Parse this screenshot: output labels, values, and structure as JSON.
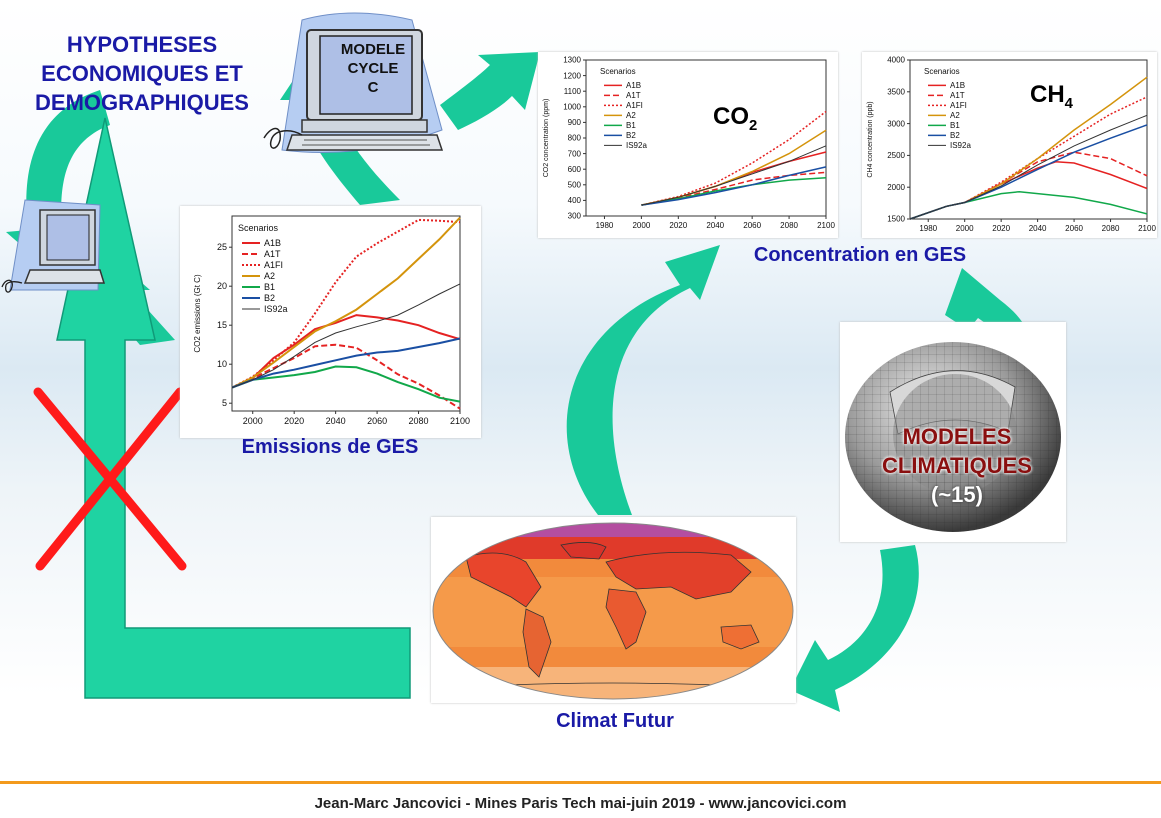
{
  "hypotheses": {
    "line1": "HYPOTHESES",
    "line2": "ECONOMIQUES ET",
    "line3": "DEMOGRAPHIQUES"
  },
  "computer": {
    "line1": "MODELE",
    "line2": "CYCLE",
    "line3": "C"
  },
  "labels": {
    "emissions": "Emissions de GES",
    "concentration": "Concentration en GES",
    "climat": "Climat Futur"
  },
  "modeles": {
    "line1": "MODELES",
    "line2": "CLIMATIQUES",
    "line3": "(~15)"
  },
  "footer": "Jean-Marc Jancovici - Mines Paris Tech mai-juin 2019 - www.jancovici.com",
  "colors": {
    "accent_blue": "#1a1aa6",
    "arrow_green": "#19c99a",
    "footer_line": "#f39a1c",
    "modeles_red": "#8a0f0f",
    "cross_red": "#ff1a1a"
  },
  "chart_data": [
    {
      "type": "line",
      "legend_title": "Scenarios",
      "ylabel": "CO2 emissions (Gt C)",
      "xlim": [
        1990,
        2100
      ],
      "ylim": [
        4,
        29
      ],
      "xticks": [
        "2000",
        "2020",
        "2040",
        "2060",
        "2080",
        "2100"
      ],
      "yticks": [
        "5",
        "10",
        "15",
        "20",
        "25"
      ],
      "legend_placement": "top-left",
      "series": [
        {
          "name": "A1B",
          "color": "#e52222",
          "style": "solid",
          "width": 2,
          "x": [
            1990,
            2000,
            2010,
            2020,
            2030,
            2040,
            2050,
            2060,
            2070,
            2080,
            2090,
            2100
          ],
          "y": [
            7,
            8.2,
            10.8,
            12.5,
            14.5,
            15.3,
            16.3,
            16,
            15.6,
            15,
            14,
            13.2
          ]
        },
        {
          "name": "A1T",
          "color": "#e52222",
          "style": "dashed",
          "width": 2,
          "x": [
            1990,
            2000,
            2010,
            2020,
            2030,
            2040,
            2050,
            2060,
            2070,
            2080,
            2090,
            2100
          ],
          "y": [
            7,
            8.2,
            9.5,
            10.8,
            12.3,
            12.5,
            12.1,
            10.5,
            8.7,
            7.5,
            6,
            4.3
          ]
        },
        {
          "name": "A1FI",
          "color": "#e52222",
          "style": "dotted",
          "width": 2,
          "x": [
            1990,
            2000,
            2010,
            2020,
            2030,
            2040,
            2050,
            2060,
            2070,
            2080,
            2090,
            2100
          ],
          "y": [
            7,
            8.4,
            10.5,
            12.8,
            16.5,
            20.5,
            23.8,
            25.5,
            27,
            28.5,
            28.4,
            28.2
          ]
        },
        {
          "name": "A2",
          "color": "#d4940c",
          "style": "solid",
          "width": 2,
          "x": [
            1990,
            2000,
            2010,
            2020,
            2030,
            2040,
            2050,
            2060,
            2070,
            2080,
            2090,
            2100
          ],
          "y": [
            7,
            8.3,
            10.2,
            12.2,
            14.2,
            15.5,
            17,
            19,
            21,
            23.5,
            26,
            28.8
          ]
        },
        {
          "name": "B1",
          "color": "#11a84a",
          "style": "solid",
          "width": 2,
          "x": [
            1990,
            2000,
            2010,
            2020,
            2030,
            2040,
            2050,
            2060,
            2070,
            2080,
            2090,
            2100
          ],
          "y": [
            7,
            8,
            8.3,
            8.6,
            9,
            9.7,
            9.6,
            8.8,
            7.7,
            6.8,
            5.7,
            5.2
          ]
        },
        {
          "name": "B2",
          "color": "#1a4fa3",
          "style": "solid",
          "width": 2,
          "x": [
            1990,
            2000,
            2010,
            2020,
            2030,
            2040,
            2050,
            2060,
            2070,
            2080,
            2090,
            2100
          ],
          "y": [
            7,
            8,
            8.8,
            9.3,
            9.9,
            10.5,
            11.1,
            11.5,
            11.7,
            12.2,
            12.7,
            13.3
          ]
        },
        {
          "name": "IS92a",
          "color": "#333333",
          "style": "solid",
          "width": 1,
          "x": [
            1990,
            2000,
            2010,
            2020,
            2030,
            2040,
            2050,
            2060,
            2070,
            2080,
            2090,
            2100
          ],
          "y": [
            7,
            8,
            9.3,
            11,
            12.8,
            14,
            14.8,
            15.5,
            16.3,
            17.6,
            19,
            20.3
          ]
        }
      ]
    },
    {
      "type": "line",
      "title": "CO2",
      "legend_title": "Scenarios",
      "ylabel": "CO2 concentration (ppm)",
      "xlim": [
        1970,
        2100
      ],
      "ylim": [
        300,
        1300
      ],
      "xticks": [
        "1980",
        "2000",
        "2020",
        "2040",
        "2060",
        "2080",
        "2100"
      ],
      "yticks": [
        "300",
        "400",
        "500",
        "600",
        "700",
        "800",
        "900",
        "1000",
        "1100",
        "1200",
        "1300"
      ],
      "legend_placement": "top-left",
      "series": [
        {
          "name": "A1B",
          "color": "#e52222",
          "style": "solid",
          "width": 1.5,
          "x": [
            2000,
            2020,
            2040,
            2060,
            2080,
            2100
          ],
          "y": [
            370,
            420,
            490,
            580,
            650,
            710
          ]
        },
        {
          "name": "A1T",
          "color": "#e52222",
          "style": "dashed",
          "width": 1.5,
          "x": [
            2000,
            2020,
            2040,
            2060,
            2080,
            2100
          ],
          "y": [
            370,
            415,
            470,
            530,
            560,
            580
          ]
        },
        {
          "name": "A1FI",
          "color": "#e52222",
          "style": "dotted",
          "width": 1.5,
          "x": [
            2000,
            2020,
            2040,
            2060,
            2080,
            2100
          ],
          "y": [
            370,
            425,
            510,
            640,
            790,
            970
          ]
        },
        {
          "name": "A2",
          "color": "#d4940c",
          "style": "solid",
          "width": 1.5,
          "x": [
            2000,
            2020,
            2040,
            2060,
            2080,
            2100
          ],
          "y": [
            370,
            420,
            490,
            585,
            700,
            850
          ]
        },
        {
          "name": "B1",
          "color": "#11a84a",
          "style": "solid",
          "width": 1.5,
          "x": [
            2000,
            2020,
            2040,
            2060,
            2080,
            2100
          ],
          "y": [
            370,
            410,
            460,
            500,
            530,
            545
          ]
        },
        {
          "name": "B2",
          "color": "#1a4fa3",
          "style": "solid",
          "width": 1.5,
          "x": [
            2000,
            2020,
            2040,
            2060,
            2080,
            2100
          ],
          "y": [
            370,
            405,
            450,
            500,
            560,
            615
          ]
        },
        {
          "name": "IS92a",
          "color": "#333333",
          "style": "solid",
          "width": 1,
          "x": [
            2000,
            2020,
            2040,
            2060,
            2080,
            2100
          ],
          "y": [
            370,
            420,
            490,
            570,
            650,
            750
          ]
        }
      ]
    },
    {
      "type": "line",
      "title": "CH4",
      "legend_title": "Scenarios",
      "ylabel": "CH4 concentration (ppb)",
      "xlim": [
        1970,
        2100
      ],
      "ylim": [
        1500,
        4000
      ],
      "xticks": [
        "1980",
        "2000",
        "2020",
        "2040",
        "2060",
        "2080",
        "2100"
      ],
      "yticks": [
        "1500",
        "2000",
        "2500",
        "3000",
        "3500",
        "4000"
      ],
      "legend_placement": "top-left",
      "series": [
        {
          "name": "A1B",
          "color": "#e52222",
          "style": "solid",
          "width": 1.5,
          "x": [
            1970,
            1990,
            2000,
            2020,
            2040,
            2050,
            2060,
            2080,
            2100
          ],
          "y": [
            1500,
            1700,
            1760,
            2050,
            2300,
            2400,
            2380,
            2200,
            1980
          ]
        },
        {
          "name": "A1T",
          "color": "#e52222",
          "style": "dashed",
          "width": 1.5,
          "x": [
            1970,
            1990,
            2000,
            2020,
            2040,
            2060,
            2080,
            2100
          ],
          "y": [
            1500,
            1700,
            1760,
            2060,
            2400,
            2550,
            2450,
            2180
          ]
        },
        {
          "name": "A1FI",
          "color": "#e52222",
          "style": "dotted",
          "width": 1.5,
          "x": [
            1970,
            1990,
            2000,
            2020,
            2040,
            2060,
            2080,
            2100
          ],
          "y": [
            1500,
            1700,
            1760,
            2080,
            2450,
            2800,
            3150,
            3420
          ]
        },
        {
          "name": "A2",
          "color": "#d4940c",
          "style": "solid",
          "width": 1.5,
          "x": [
            1970,
            1990,
            2000,
            2020,
            2040,
            2060,
            2080,
            2100
          ],
          "y": [
            1500,
            1700,
            1760,
            2050,
            2450,
            2900,
            3300,
            3730
          ]
        },
        {
          "name": "B1",
          "color": "#11a84a",
          "style": "solid",
          "width": 1.5,
          "x": [
            1970,
            1990,
            2000,
            2020,
            2030,
            2060,
            2080,
            2100
          ],
          "y": [
            1500,
            1700,
            1760,
            1900,
            1930,
            1840,
            1730,
            1580
          ]
        },
        {
          "name": "B2",
          "color": "#1a4fa3",
          "style": "solid",
          "width": 1.5,
          "x": [
            1970,
            1990,
            2000,
            2020,
            2040,
            2060,
            2080,
            2100
          ],
          "y": [
            1500,
            1700,
            1760,
            2000,
            2280,
            2550,
            2770,
            2980
          ]
        },
        {
          "name": "IS92a",
          "color": "#333333",
          "style": "solid",
          "width": 1,
          "x": [
            1970,
            1990,
            2000,
            2020,
            2040,
            2060,
            2080,
            2100
          ],
          "y": [
            1500,
            1700,
            1760,
            2020,
            2350,
            2650,
            2900,
            3130
          ]
        }
      ]
    }
  ]
}
